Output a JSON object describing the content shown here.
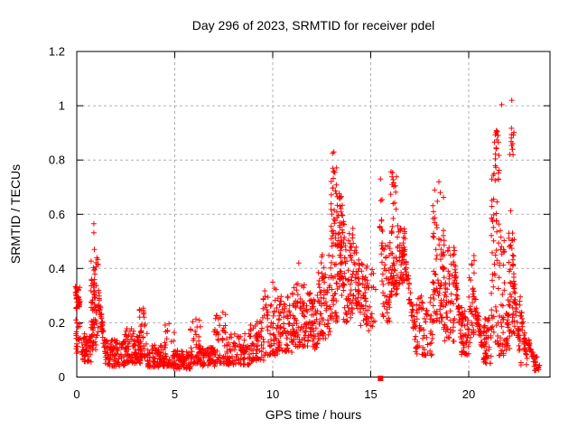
{
  "chart_data": {
    "type": "scatter",
    "title": "Day 296 of 2023, SRMTID for receiver pdel",
    "xlabel": "GPS time / hours",
    "ylabel": "SRMTID / TECUs",
    "xlim": [
      0,
      24.15
    ],
    "ylim": [
      0,
      1.2
    ],
    "xticks": [
      0,
      5,
      10,
      15,
      20
    ],
    "xtick_labels": [
      "0",
      "5",
      "10",
      "15",
      "20"
    ],
    "yticks": [
      0,
      0.2,
      0.4,
      0.6,
      0.8,
      1,
      1.2
    ],
    "ytick_labels": [
      "0",
      "0.2",
      "0.4",
      "0.6",
      "0.8",
      "1",
      "1.2"
    ],
    "grid": "dashed",
    "legend_position": "none",
    "marker": "plus",
    "marker_color": "#ff0000",
    "grid_color": "#b0b0b0",
    "axis_color": "#000000",
    "background_color": "#ffffff",
    "seed": 1296,
    "square_point": [
      15.5,
      -0.005
    ],
    "outlier_points": [
      [
        0.87,
        0.565
      ],
      [
        0.87,
        0.532
      ],
      [
        0.9,
        0.47
      ],
      [
        10.0,
        0.35
      ],
      [
        11.33,
        0.42
      ],
      [
        13.05,
        0.825
      ],
      [
        13.12,
        0.83
      ],
      [
        13.07,
        0.77
      ],
      [
        13.17,
        0.755
      ],
      [
        15.5,
        0.73
      ],
      [
        15.52,
        0.65
      ],
      [
        15.55,
        0.575
      ],
      [
        16.04,
        0.757
      ],
      [
        16.1,
        0.71
      ],
      [
        18.48,
        0.72
      ],
      [
        18.55,
        0.68
      ],
      [
        21.45,
        0.905
      ],
      [
        21.5,
        0.89
      ],
      [
        21.69,
        1.004
      ],
      [
        22.2,
        1.02
      ],
      [
        22.18,
        0.917
      ],
      [
        22.25,
        0.86
      ],
      [
        22.22,
        0.84
      ]
    ],
    "cloud_segments": [
      {
        "x0": -0.07,
        "x1": 0.18,
        "n": 34,
        "y0": 0.25,
        "y1": 0.335,
        "bias": 1.0
      },
      {
        "x0": -0.05,
        "x1": 0.35,
        "n": 26,
        "y0": 0.08,
        "y1": 0.22,
        "bias": 1.3
      },
      {
        "x0": 0.3,
        "x1": 0.75,
        "n": 45,
        "y0": 0.055,
        "y1": 0.16,
        "bias": 1.5
      },
      {
        "x0": 0.72,
        "x1": 1.12,
        "n": 75,
        "y0": 0.1,
        "y1": 0.44,
        "bias": 1.6
      },
      {
        "x0": 1.1,
        "x1": 1.5,
        "n": 42,
        "y0": 0.07,
        "y1": 0.3,
        "bias": 2.0,
        "trend": 1
      },
      {
        "x0": 1.45,
        "x1": 2.45,
        "n": 95,
        "y0": 0.04,
        "y1": 0.14,
        "bias": 1.4
      },
      {
        "x0": 2.4,
        "x1": 2.95,
        "n": 50,
        "y0": 0.05,
        "y1": 0.18,
        "bias": 1.7
      },
      {
        "x0": 2.9,
        "x1": 3.25,
        "n": 38,
        "y0": 0.05,
        "y1": 0.15,
        "bias": 1.4
      },
      {
        "x0": 3.2,
        "x1": 3.65,
        "n": 45,
        "y0": 0.07,
        "y1": 0.26,
        "bias": 1.9
      },
      {
        "x0": 3.6,
        "x1": 4.45,
        "n": 70,
        "y0": 0.035,
        "y1": 0.12,
        "bias": 1.4
      },
      {
        "x0": 4.4,
        "x1": 5.0,
        "n": 52,
        "y0": 0.04,
        "y1": 0.2,
        "bias": 2.3
      },
      {
        "x0": 4.95,
        "x1": 5.85,
        "n": 75,
        "y0": 0.03,
        "y1": 0.1,
        "bias": 1.3
      },
      {
        "x0": 5.8,
        "x1": 6.35,
        "n": 50,
        "y0": 0.05,
        "y1": 0.22,
        "bias": 1.9
      },
      {
        "x0": 6.3,
        "x1": 7.05,
        "n": 60,
        "y0": 0.04,
        "y1": 0.12,
        "bias": 1.3
      },
      {
        "x0": 7.0,
        "x1": 7.7,
        "n": 58,
        "y0": 0.05,
        "y1": 0.25,
        "bias": 2.1
      },
      {
        "x0": 7.65,
        "x1": 8.85,
        "n": 90,
        "y0": 0.045,
        "y1": 0.16,
        "bias": 1.6
      },
      {
        "x0": 8.8,
        "x1": 9.55,
        "n": 60,
        "y0": 0.06,
        "y1": 0.22,
        "bias": 1.5
      },
      {
        "x0": 9.5,
        "x1": 10.35,
        "n": 72,
        "y0": 0.08,
        "y1": 0.35,
        "bias": 1.7
      },
      {
        "x0": 10.3,
        "x1": 11.05,
        "n": 70,
        "y0": 0.09,
        "y1": 0.3,
        "bias": 1.3
      },
      {
        "x0": 11.0,
        "x1": 11.65,
        "n": 66,
        "y0": 0.11,
        "y1": 0.38,
        "bias": 1.4
      },
      {
        "x0": 11.6,
        "x1": 12.3,
        "n": 72,
        "y0": 0.1,
        "y1": 0.31,
        "bias": 1.2
      },
      {
        "x0": 12.3,
        "x1": 12.95,
        "n": 70,
        "y0": 0.14,
        "y1": 0.46,
        "bias": 1.4
      },
      {
        "x0": 12.95,
        "x1": 13.3,
        "n": 62,
        "y0": 0.2,
        "y1": 0.78,
        "bias": 1.3
      },
      {
        "x0": 13.28,
        "x1": 13.65,
        "n": 70,
        "y0": 0.3,
        "y1": 0.68,
        "bias": 1.0
      },
      {
        "x0": 13.6,
        "x1": 14.1,
        "n": 58,
        "y0": 0.2,
        "y1": 0.55,
        "bias": 1.2
      },
      {
        "x0": 14.05,
        "x1": 14.4,
        "n": 34,
        "y0": 0.25,
        "y1": 0.5,
        "bias": 1.2
      },
      {
        "x0": 14.35,
        "x1": 15.25,
        "n": 70,
        "y0": 0.17,
        "y1": 0.42,
        "bias": 1.1
      },
      {
        "x0": 15.45,
        "x1": 15.62,
        "n": 9,
        "y0": 0.42,
        "y1": 0.72,
        "bias": 1.0
      },
      {
        "x0": 15.55,
        "x1": 16.0,
        "n": 45,
        "y0": 0.2,
        "y1": 0.5,
        "bias": 1.3
      },
      {
        "x0": 15.95,
        "x1": 16.35,
        "n": 56,
        "y0": 0.3,
        "y1": 0.76,
        "bias": 1.6
      },
      {
        "x0": 16.35,
        "x1": 16.75,
        "n": 46,
        "y0": 0.33,
        "y1": 0.56,
        "bias": 0.9
      },
      {
        "x0": 16.7,
        "x1": 17.3,
        "n": 48,
        "y0": 0.14,
        "y1": 0.45,
        "bias": 1.0,
        "trend": 1
      },
      {
        "x0": 17.25,
        "x1": 18.15,
        "n": 60,
        "y0": 0.08,
        "y1": 0.3,
        "bias": 1.5
      },
      {
        "x0": 18.15,
        "x1": 18.75,
        "n": 80,
        "y0": 0.2,
        "y1": 0.7,
        "bias": 1.4
      },
      {
        "x0": 18.7,
        "x1": 19.3,
        "n": 62,
        "y0": 0.13,
        "y1": 0.5,
        "bias": 1.5
      },
      {
        "x0": 19.25,
        "x1": 19.65,
        "n": 40,
        "y0": 0.13,
        "y1": 0.42,
        "bias": 1.6,
        "trend": 1
      },
      {
        "x0": 19.6,
        "x1": 20.0,
        "n": 45,
        "y0": 0.08,
        "y1": 0.26,
        "bias": 1.3
      },
      {
        "x0": 20.0,
        "x1": 20.28,
        "n": 28,
        "y0": 0.12,
        "y1": 0.45,
        "bias": 1.2
      },
      {
        "x0": 20.25,
        "x1": 20.8,
        "n": 42,
        "y0": 0.07,
        "y1": 0.3,
        "bias": 1.4,
        "trend": 1
      },
      {
        "x0": 20.75,
        "x1": 21.15,
        "n": 44,
        "y0": 0.05,
        "y1": 0.22,
        "bias": 1.2
      },
      {
        "x0": 21.15,
        "x1": 21.55,
        "n": 55,
        "y0": 0.12,
        "y1": 0.78,
        "bias": 1.5
      },
      {
        "x0": 21.3,
        "x1": 21.55,
        "n": 12,
        "y0": 0.8,
        "y1": 0.915,
        "bias": 1.0
      },
      {
        "x0": 21.55,
        "x1": 21.85,
        "n": 40,
        "y0": 0.08,
        "y1": 0.55,
        "bias": 1.8
      },
      {
        "x0": 21.85,
        "x1": 22.1,
        "n": 24,
        "y0": 0.1,
        "y1": 0.3,
        "bias": 1.2
      },
      {
        "x0": 22.05,
        "x1": 22.35,
        "n": 46,
        "y0": 0.16,
        "y1": 0.62,
        "bias": 1.2
      },
      {
        "x0": 22.1,
        "x1": 22.32,
        "n": 9,
        "y0": 0.8,
        "y1": 0.92,
        "bias": 1.0
      },
      {
        "x0": 22.3,
        "x1": 22.68,
        "n": 40,
        "y0": 0.05,
        "y1": 0.35,
        "bias": 1.0,
        "trend": 1
      },
      {
        "x0": 22.6,
        "x1": 23.0,
        "n": 36,
        "y0": 0.04,
        "y1": 0.28,
        "bias": 1.0,
        "trend": 1
      },
      {
        "x0": 22.95,
        "x1": 23.45,
        "n": 30,
        "y0": 0.03,
        "y1": 0.15,
        "bias": 1.2,
        "trend": 1
      },
      {
        "x0": 23.35,
        "x1": 23.62,
        "n": 12,
        "y0": 0.02,
        "y1": 0.09,
        "bias": 1.2
      }
    ]
  }
}
